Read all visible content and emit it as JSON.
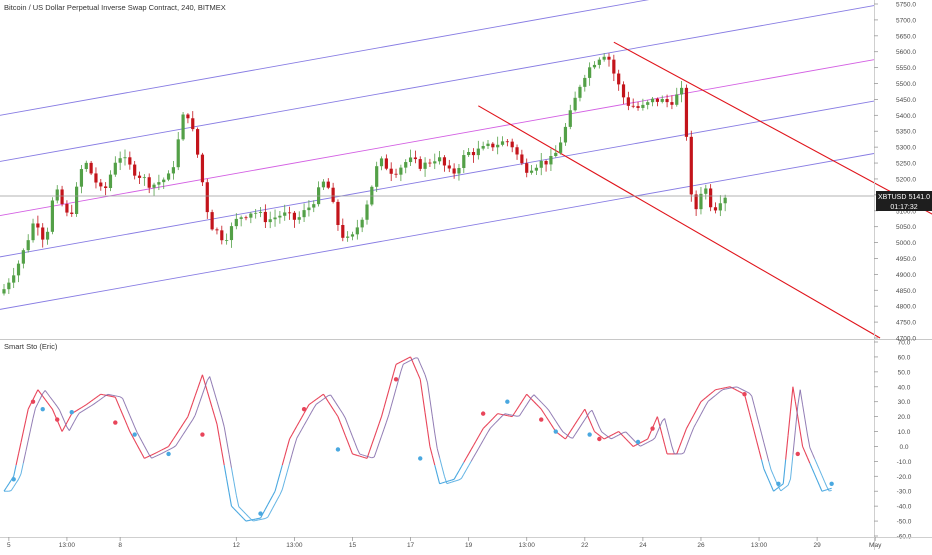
{
  "header": {
    "title": "Bitcoin / US Dollar Perpetual Inverse Swap Contract, 240, BITMEX"
  },
  "colors": {
    "up": "#53a047",
    "down": "#c3141b",
    "channel_main": "#7b6ee0",
    "channel_mid": "#cf4fe0",
    "trend": "#e0141b",
    "sto_red": "#e8455a",
    "sto_purple": "#8067a8",
    "sto_blue": "#4aa8e0",
    "axis_text": "#4a4a4a",
    "grid": "#e6e6e6"
  },
  "price_badge": {
    "symbol": "XBTUSD",
    "price": "5141.0",
    "countdown": "01:17:32"
  },
  "x_axis": {
    "ticks": [
      {
        "label": "5",
        "t": 1
      },
      {
        "label": "13:00",
        "t": 13
      },
      {
        "label": "8",
        "t": 24
      },
      {
        "label": "12",
        "t": 48
      },
      {
        "label": "13:00",
        "t": 60
      },
      {
        "label": "15",
        "t": 72
      },
      {
        "label": "17",
        "t": 84
      },
      {
        "label": "19",
        "t": 96
      },
      {
        "label": "13:00",
        "t": 108
      },
      {
        "label": "22",
        "t": 120
      },
      {
        "label": "24",
        "t": 132
      },
      {
        "label": "26",
        "t": 144
      },
      {
        "label": "13:00",
        "t": 156
      },
      {
        "label": "29",
        "t": 168
      },
      {
        "label": "May",
        "t": 180
      }
    ]
  },
  "chart_data": [
    {
      "type": "candlestick",
      "title": "Bitcoin / US Dollar Perpetual Inverse Swap Contract, 240, BITMEX",
      "ylim": [
        4700,
        5750
      ],
      "y_ticks": [
        "5750.0",
        "5700.0",
        "5650.0",
        "5600.0",
        "5550.0",
        "5500.0",
        "5450.0",
        "5400.0",
        "5350.0",
        "5300.0",
        "5250.0",
        "5200.0",
        "5150.0",
        "5100.0",
        "5050.0",
        "5000.0",
        "4950.0",
        "4900.0",
        "4850.0",
        "4800.0",
        "4750.0",
        "4700.0"
      ],
      "last_price": 5141.0,
      "anchors": [
        {
          "t": 0,
          "p": 4840
        },
        {
          "t": 4,
          "p": 4950
        },
        {
          "t": 7,
          "p": 5080
        },
        {
          "t": 9,
          "p": 5000
        },
        {
          "t": 11,
          "p": 5170
        },
        {
          "t": 14,
          "p": 5070
        },
        {
          "t": 17,
          "p": 5260
        },
        {
          "t": 21,
          "p": 5150
        },
        {
          "t": 24,
          "p": 5280
        },
        {
          "t": 27,
          "p": 5230
        },
        {
          "t": 31,
          "p": 5180
        },
        {
          "t": 35,
          "p": 5210
        },
        {
          "t": 38,
          "p": 5430
        },
        {
          "t": 40,
          "p": 5320
        },
        {
          "t": 43,
          "p": 5060
        },
        {
          "t": 46,
          "p": 5010
        },
        {
          "t": 49,
          "p": 5080
        },
        {
          "t": 52,
          "p": 5100
        },
        {
          "t": 55,
          "p": 5070
        },
        {
          "t": 58,
          "p": 5090
        },
        {
          "t": 61,
          "p": 5070
        },
        {
          "t": 64,
          "p": 5120
        },
        {
          "t": 67,
          "p": 5200
        },
        {
          "t": 70,
          "p": 5030
        },
        {
          "t": 72,
          "p": 5000
        },
        {
          "t": 75,
          "p": 5100
        },
        {
          "t": 78,
          "p": 5260
        },
        {
          "t": 81,
          "p": 5220
        },
        {
          "t": 84,
          "p": 5260
        },
        {
          "t": 87,
          "p": 5240
        },
        {
          "t": 90,
          "p": 5270
        },
        {
          "t": 93,
          "p": 5210
        },
        {
          "t": 96,
          "p": 5280
        },
        {
          "t": 99,
          "p": 5290
        },
        {
          "t": 102,
          "p": 5310
        },
        {
          "t": 105,
          "p": 5320
        },
        {
          "t": 108,
          "p": 5230
        },
        {
          "t": 111,
          "p": 5250
        },
        {
          "t": 114,
          "p": 5260
        },
        {
          "t": 117,
          "p": 5380
        },
        {
          "t": 120,
          "p": 5520
        },
        {
          "t": 123,
          "p": 5580
        },
        {
          "t": 125,
          "p": 5600
        },
        {
          "t": 127,
          "p": 5510
        },
        {
          "t": 129,
          "p": 5440
        },
        {
          "t": 132,
          "p": 5420
        },
        {
          "t": 135,
          "p": 5450
        },
        {
          "t": 138,
          "p": 5440
        },
        {
          "t": 141,
          "p": 5480
        },
        {
          "t": 142,
          "p": 5200
        },
        {
          "t": 143,
          "p": 5080
        },
        {
          "t": 145,
          "p": 5190
        },
        {
          "t": 147,
          "p": 5100
        },
        {
          "t": 149,
          "p": 5150
        }
      ],
      "channel": {
        "lines": [
          {
            "p0": 4790,
            "p1": 5280,
            "role": "main"
          },
          {
            "p0": 4955,
            "p1": 5445,
            "role": "main"
          },
          {
            "p0": 5085,
            "p1": 5575,
            "role": "mid"
          },
          {
            "p0": 5255,
            "p1": 5745,
            "role": "main"
          },
          {
            "p0": 5400,
            "p1": 5890,
            "role": "main"
          }
        ]
      },
      "trendlines": [
        {
          "t0": 98,
          "p0": 5430,
          "t1": 181,
          "p1": 4700
        },
        {
          "t0": 126,
          "p0": 5630,
          "t1": 199,
          "p1": 5030
        }
      ]
    },
    {
      "type": "line",
      "title": "Smart Sto (Eric)",
      "ylim": [
        -60,
        70
      ],
      "y_ticks": [
        "70.0",
        "60.0",
        "50.0",
        "40.0",
        "30.0",
        "20.0",
        "10.0",
        "0.0",
        "-10.0",
        "-20.0",
        "-30.0",
        "-40.0",
        "-50.0",
        "-60.0"
      ],
      "anchors": [
        {
          "t": 0,
          "v": -30
        },
        {
          "t": 2,
          "v": -20
        },
        {
          "t": 5,
          "v": 25
        },
        {
          "t": 7,
          "v": 38
        },
        {
          "t": 10,
          "v": 25
        },
        {
          "t": 12,
          "v": 10
        },
        {
          "t": 14,
          "v": 22
        },
        {
          "t": 17,
          "v": 28
        },
        {
          "t": 20,
          "v": 35
        },
        {
          "t": 23,
          "v": 33
        },
        {
          "t": 26,
          "v": 10
        },
        {
          "t": 29,
          "v": -8
        },
        {
          "t": 31,
          "v": -5
        },
        {
          "t": 34,
          "v": 0
        },
        {
          "t": 38,
          "v": 20
        },
        {
          "t": 41,
          "v": 48
        },
        {
          "t": 44,
          "v": 15
        },
        {
          "t": 47,
          "v": -40
        },
        {
          "t": 50,
          "v": -50
        },
        {
          "t": 53,
          "v": -48
        },
        {
          "t": 56,
          "v": -30
        },
        {
          "t": 59,
          "v": 5
        },
        {
          "t": 63,
          "v": 28
        },
        {
          "t": 66,
          "v": 35
        },
        {
          "t": 69,
          "v": 20
        },
        {
          "t": 72,
          "v": -5
        },
        {
          "t": 75,
          "v": -8
        },
        {
          "t": 78,
          "v": 20
        },
        {
          "t": 81,
          "v": 55
        },
        {
          "t": 84,
          "v": 60
        },
        {
          "t": 86,
          "v": 45
        },
        {
          "t": 88,
          "v": 0
        },
        {
          "t": 90,
          "v": -25
        },
        {
          "t": 93,
          "v": -22
        },
        {
          "t": 96,
          "v": -5
        },
        {
          "t": 99,
          "v": 12
        },
        {
          "t": 102,
          "v": 22
        },
        {
          "t": 105,
          "v": 20
        },
        {
          "t": 108,
          "v": 35
        },
        {
          "t": 111,
          "v": 25
        },
        {
          "t": 114,
          "v": 10
        },
        {
          "t": 116,
          "v": 5
        },
        {
          "t": 118,
          "v": 15
        },
        {
          "t": 120,
          "v": 25
        },
        {
          "t": 122,
          "v": 10
        },
        {
          "t": 124,
          "v": 5
        },
        {
          "t": 127,
          "v": 10
        },
        {
          "t": 130,
          "v": 0
        },
        {
          "t": 133,
          "v": 5
        },
        {
          "t": 135,
          "v": 20
        },
        {
          "t": 137,
          "v": -5
        },
        {
          "t": 139,
          "v": -5
        },
        {
          "t": 141,
          "v": 12
        },
        {
          "t": 144,
          "v": 30
        },
        {
          "t": 147,
          "v": 38
        },
        {
          "t": 150,
          "v": 40
        },
        {
          "t": 153,
          "v": 35
        },
        {
          "t": 155,
          "v": 10
        },
        {
          "t": 157,
          "v": -15
        },
        {
          "t": 159,
          "v": -30
        },
        {
          "t": 161,
          "v": -25
        },
        {
          "t": 163,
          "v": 40
        },
        {
          "t": 165,
          "v": 0
        },
        {
          "t": 167,
          "v": -15
        },
        {
          "t": 169,
          "v": -30
        },
        {
          "t": 171,
          "v": -28
        }
      ],
      "markers": [
        {
          "t": 2,
          "v": -22,
          "c": "blue"
        },
        {
          "t": 6,
          "v": 30,
          "c": "red"
        },
        {
          "t": 8,
          "v": 25,
          "c": "blue"
        },
        {
          "t": 11,
          "v": 18,
          "c": "red"
        },
        {
          "t": 14,
          "v": 23,
          "c": "blue"
        },
        {
          "t": 23,
          "v": 16,
          "c": "red"
        },
        {
          "t": 27,
          "v": 8,
          "c": "blue"
        },
        {
          "t": 34,
          "v": -5,
          "c": "blue"
        },
        {
          "t": 41,
          "v": 8,
          "c": "red"
        },
        {
          "t": 53,
          "v": -45,
          "c": "blue"
        },
        {
          "t": 62,
          "v": 25,
          "c": "red"
        },
        {
          "t": 69,
          "v": -2,
          "c": "blue"
        },
        {
          "t": 81,
          "v": 45,
          "c": "red"
        },
        {
          "t": 86,
          "v": -8,
          "c": "blue"
        },
        {
          "t": 99,
          "v": 22,
          "c": "red"
        },
        {
          "t": 104,
          "v": 30,
          "c": "blue"
        },
        {
          "t": 111,
          "v": 18,
          "c": "red"
        },
        {
          "t": 114,
          "v": 10,
          "c": "blue"
        },
        {
          "t": 121,
          "v": 8,
          "c": "blue"
        },
        {
          "t": 123,
          "v": 5,
          "c": "red"
        },
        {
          "t": 131,
          "v": 3,
          "c": "blue"
        },
        {
          "t": 134,
          "v": 12,
          "c": "red"
        },
        {
          "t": 153,
          "v": 35,
          "c": "red"
        },
        {
          "t": 160,
          "v": -25,
          "c": "blue"
        },
        {
          "t": 164,
          "v": -5,
          "c": "red"
        },
        {
          "t": 171,
          "v": -25,
          "c": "blue"
        }
      ]
    }
  ]
}
